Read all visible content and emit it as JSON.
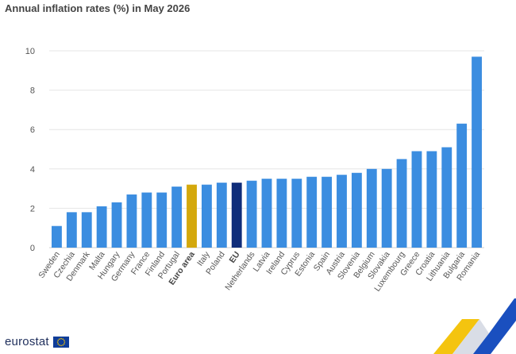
{
  "header": {
    "title": "Annual inflation rates (%) in May 2026"
  },
  "branding": {
    "name": "eurostat",
    "flag_icon": "eu-flag-icon"
  },
  "chart_data": {
    "type": "bar",
    "title": "Annual inflation rates (%) in May 2026",
    "xlabel": "",
    "ylabel": "",
    "ylim": [
      0,
      10
    ],
    "yticks": [
      0,
      2,
      4,
      6,
      8,
      10
    ],
    "grid": true,
    "legend": "none",
    "colors": {
      "country": "#3b8de0",
      "euro_area": "#d4a80c",
      "eu": "#0f2d7a"
    },
    "categories": [
      "Sweden",
      "Czechia",
      "Denmark",
      "Malta",
      "Hungary",
      "Germany",
      "France",
      "Finland",
      "Portugal",
      "Euro area",
      "Italy",
      "Poland",
      "EU",
      "Netherlands",
      "Latvia",
      "Ireland",
      "Cyprus",
      "Estonia",
      "Spain",
      "Austria",
      "Slovenia",
      "Belgium",
      "Slovakia",
      "Luxembourg",
      "Greece",
      "Croatia",
      "Lithuania",
      "Bulgaria",
      "Romania"
    ],
    "values": [
      1.1,
      1.8,
      1.8,
      2.1,
      2.3,
      2.7,
      2.8,
      2.8,
      3.1,
      3.2,
      3.2,
      3.3,
      3.3,
      3.4,
      3.5,
      3.5,
      3.5,
      3.6,
      3.6,
      3.7,
      3.8,
      4.0,
      4.0,
      4.5,
      4.9,
      4.9,
      5.1,
      6.3,
      9.7
    ],
    "highlight": {
      "Euro area": "euro_area",
      "EU": "eu"
    }
  }
}
